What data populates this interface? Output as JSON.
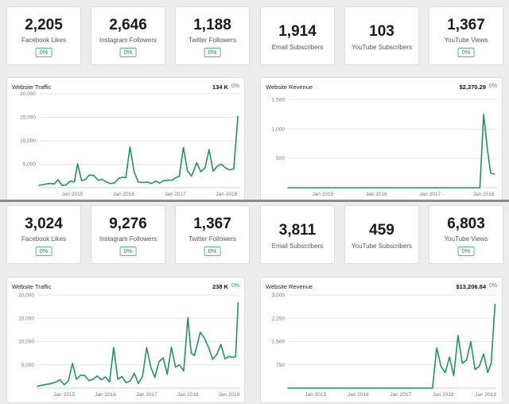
{
  "colors": {
    "line": "#1e9466",
    "grid": "#e6e6e6",
    "badge": "#2aa05a"
  },
  "panels": [
    {
      "stats": [
        {
          "value": "2,205",
          "label": "Facebook Likes",
          "badge": "0%"
        },
        {
          "value": "2,646",
          "label": "Instagram Followers",
          "badge": "0%"
        },
        {
          "value": "1,188",
          "label": "Twitter Followers",
          "badge": "0%"
        },
        {
          "value": "1,914",
          "label": "Email Subscribers"
        },
        {
          "value": "103",
          "label": "YouTube Subscribers"
        },
        {
          "value": "1,367",
          "label": "YouTube Views",
          "badge": "0%"
        }
      ],
      "traffic": {
        "title": "Website Traffic",
        "total": "134 K",
        "pct": "0%"
      },
      "revenue": {
        "title": "Website Revenue",
        "total": "$2,370.29",
        "pct": "0%"
      }
    },
    {
      "stats": [
        {
          "value": "3,024",
          "label": "Facebook Likes",
          "badge": "0%"
        },
        {
          "value": "9,276",
          "label": "Instagram Followers",
          "badge": "0%"
        },
        {
          "value": "1,367",
          "label": "Twitter Followers",
          "badge": "0%"
        },
        {
          "value": "3,811",
          "label": "Email Subscribers"
        },
        {
          "value": "459",
          "label": "YouTube Subscribers"
        },
        {
          "value": "6,803",
          "label": "YouTube Views",
          "badge": "0%"
        }
      ],
      "traffic": {
        "title": "Website Traffic",
        "total": "238 K",
        "pct": "0%"
      },
      "revenue": {
        "title": "Website Revenue",
        "total": "$13,206.84",
        "pct": "0%"
      }
    }
  ],
  "chart_data": [
    {
      "type": "line",
      "title": "Website Traffic",
      "yticks": [
        5000,
        10000,
        15000,
        20000
      ],
      "ytick_labels": [
        "5,000",
        "10,000",
        "15,000",
        "20,000"
      ],
      "ylim": [
        0,
        20000
      ],
      "xlim": [
        2014.35,
        2018.25
      ],
      "xticks": [
        2015,
        2016,
        2017,
        2018
      ],
      "xtick_labels": [
        "Jan 2015",
        "Jan 2016",
        "Jan 2017",
        "Jan 2018"
      ],
      "x": [
        2014.35,
        2014.45,
        2014.55,
        2014.65,
        2014.72,
        2014.8,
        2014.88,
        2014.96,
        2015.04,
        2015.1,
        2015.18,
        2015.26,
        2015.33,
        2015.42,
        2015.5,
        2015.58,
        2015.66,
        2015.74,
        2015.82,
        2015.9,
        2015.98,
        2016.04,
        2016.12,
        2016.2,
        2016.28,
        2016.38,
        2016.46,
        2016.54,
        2016.62,
        2016.7,
        2016.78,
        2016.86,
        2016.94,
        2017.02,
        2017.08,
        2017.16,
        2017.24,
        2017.32,
        2017.42,
        2017.5,
        2017.58,
        2017.66,
        2017.74,
        2017.82,
        2017.9,
        2017.98,
        2018.06,
        2018.14,
        2018.22
      ],
      "series": [
        {
          "name": "Traffic",
          "values": [
            500,
            700,
            900,
            800,
            1700,
            500,
            600,
            1400,
            1200,
            5100,
            1500,
            1800,
            2700,
            2600,
            1600,
            1800,
            1200,
            900,
            1000,
            2000,
            2200,
            2100,
            8700,
            3500,
            1200,
            1100,
            1200,
            900,
            1400,
            1000,
            1500,
            1600,
            1600,
            2200,
            2400,
            8600,
            3500,
            2500,
            5300,
            3400,
            4200,
            8100,
            3500,
            4600,
            5000,
            4200,
            3800,
            4000,
            15200
          ]
        }
      ]
    },
    {
      "type": "line",
      "title": "Website Revenue",
      "yticks": [
        500,
        1000,
        1500
      ],
      "ytick_labels": [
        "500",
        "1,000",
        "1,500"
      ],
      "ylim": [
        0,
        1600
      ],
      "xlim": [
        2014.35,
        2018.25
      ],
      "xticks": [
        2015,
        2016,
        2017,
        2018
      ],
      "xtick_labels": [
        "Jan 2015",
        "Jan 2016",
        "Jan 2017",
        "Jan 2018"
      ],
      "x": [
        2014.35,
        2017.85,
        2017.93,
        2018.0,
        2018.07,
        2018.13,
        2018.2
      ],
      "series": [
        {
          "name": "Revenue",
          "values": [
            0,
            0,
            0,
            1250,
            650,
            250,
            230
          ]
        }
      ]
    },
    {
      "type": "line",
      "title": "Website Traffic",
      "yticks": [
        5000,
        10000,
        15000,
        20000
      ],
      "ytick_labels": [
        "5,000",
        "10,000",
        "15,000",
        "20,000"
      ],
      "ylim": [
        0,
        20000
      ],
      "xlim": [
        2014.35,
        2019.25
      ],
      "xticks": [
        2015,
        2016,
        2017,
        2018,
        2019
      ],
      "xtick_labels": [
        "Jan 2015",
        "Jan 2016",
        "Jan 2017",
        "Jan 2018",
        "Jan 2019"
      ],
      "x": [
        2014.35,
        2014.5,
        2014.65,
        2014.8,
        2014.9,
        2015.0,
        2015.1,
        2015.2,
        2015.3,
        2015.4,
        2015.5,
        2015.6,
        2015.7,
        2015.8,
        2015.9,
        2016.0,
        2016.1,
        2016.2,
        2016.3,
        2016.4,
        2016.5,
        2016.6,
        2016.7,
        2016.8,
        2016.9,
        2017.0,
        2017.1,
        2017.2,
        2017.3,
        2017.4,
        2017.5,
        2017.6,
        2017.7,
        2017.8,
        2017.9,
        2018.0,
        2018.08,
        2018.16,
        2018.3,
        2018.4,
        2018.5,
        2018.6,
        2018.7,
        2018.8,
        2018.9,
        2019.0,
        2019.08,
        2019.16,
        2019.22
      ],
      "series": [
        {
          "name": "Traffic",
          "values": [
            400,
            700,
            900,
            1300,
            1800,
            700,
            1500,
            5300,
            1900,
            2800,
            2700,
            1600,
            1900,
            2600,
            1800,
            2400,
            1300,
            8700,
            1900,
            2500,
            1200,
            1500,
            3200,
            1000,
            2500,
            8700,
            4500,
            2300,
            5700,
            6500,
            3000,
            8800,
            4500,
            5000,
            3700,
            15200,
            7500,
            7000,
            12000,
            10800,
            8800,
            6200,
            7200,
            9400,
            6300,
            6800,
            6600,
            6800,
            18300
          ]
        }
      ]
    },
    {
      "type": "line",
      "title": "Website Revenue",
      "yticks": [
        750,
        1500,
        2250,
        3000
      ],
      "ytick_labels": [
        "750",
        "1,500",
        "2,250",
        "3,000"
      ],
      "ylim": [
        0,
        3000
      ],
      "xlim": [
        2014.35,
        2019.25
      ],
      "xticks": [
        2015,
        2016,
        2017,
        2018,
        2019
      ],
      "xtick_labels": [
        "Jan 2015",
        "Jan 2016",
        "Jan 2017",
        "Jan 2018",
        "Jan 2019"
      ],
      "x": [
        2014.35,
        2017.6,
        2017.75,
        2017.85,
        2017.95,
        2018.05,
        2018.15,
        2018.25,
        2018.35,
        2018.45,
        2018.55,
        2018.65,
        2018.75,
        2018.85,
        2018.95,
        2019.05,
        2019.13,
        2019.22
      ],
      "series": [
        {
          "name": "Revenue",
          "values": [
            0,
            0,
            0,
            1300,
            700,
            500,
            1000,
            400,
            1700,
            800,
            900,
            1500,
            600,
            700,
            1100,
            500,
            800,
            2700
          ]
        }
      ]
    }
  ]
}
